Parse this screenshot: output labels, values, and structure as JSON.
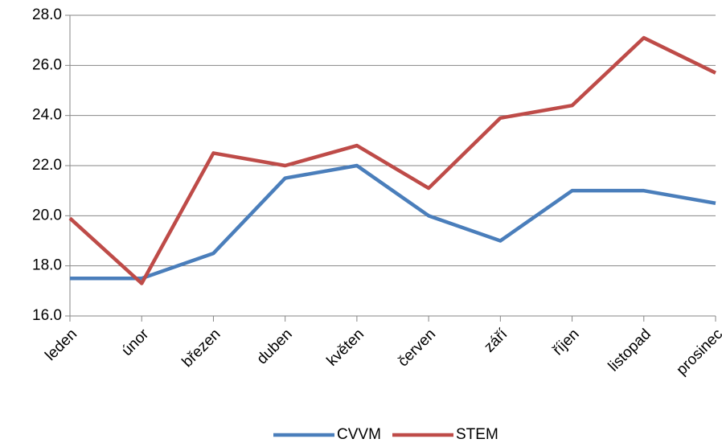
{
  "chart_data": {
    "type": "line",
    "categories": [
      "leden",
      "únor",
      "březen",
      "duben",
      "květen",
      "červen",
      "září",
      "říjen",
      "listopad",
      "prosinec"
    ],
    "series": [
      {
        "name": "CVVM",
        "color": "#4a7ebb",
        "values": [
          17.5,
          17.5,
          18.5,
          21.5,
          22.0,
          20.0,
          19.0,
          21.0,
          21.0,
          20.5
        ]
      },
      {
        "name": "STEM",
        "color": "#be4b48",
        "values": [
          19.9,
          17.3,
          22.5,
          22.0,
          22.8,
          21.1,
          23.9,
          24.4,
          27.1,
          25.7
        ]
      }
    ],
    "ylim": [
      16,
      28
    ],
    "yticks": [
      {
        "value": 16,
        "label": "16.0"
      },
      {
        "value": 18,
        "label": "18.0"
      },
      {
        "value": 20,
        "label": "20.0"
      },
      {
        "value": 22,
        "label": "22.0"
      },
      {
        "value": 24,
        "label": "24.0"
      },
      {
        "value": 26,
        "label": "26.0"
      },
      {
        "value": 28,
        "label": "28.0"
      }
    ],
    "grid": true,
    "legend": "bottom"
  }
}
